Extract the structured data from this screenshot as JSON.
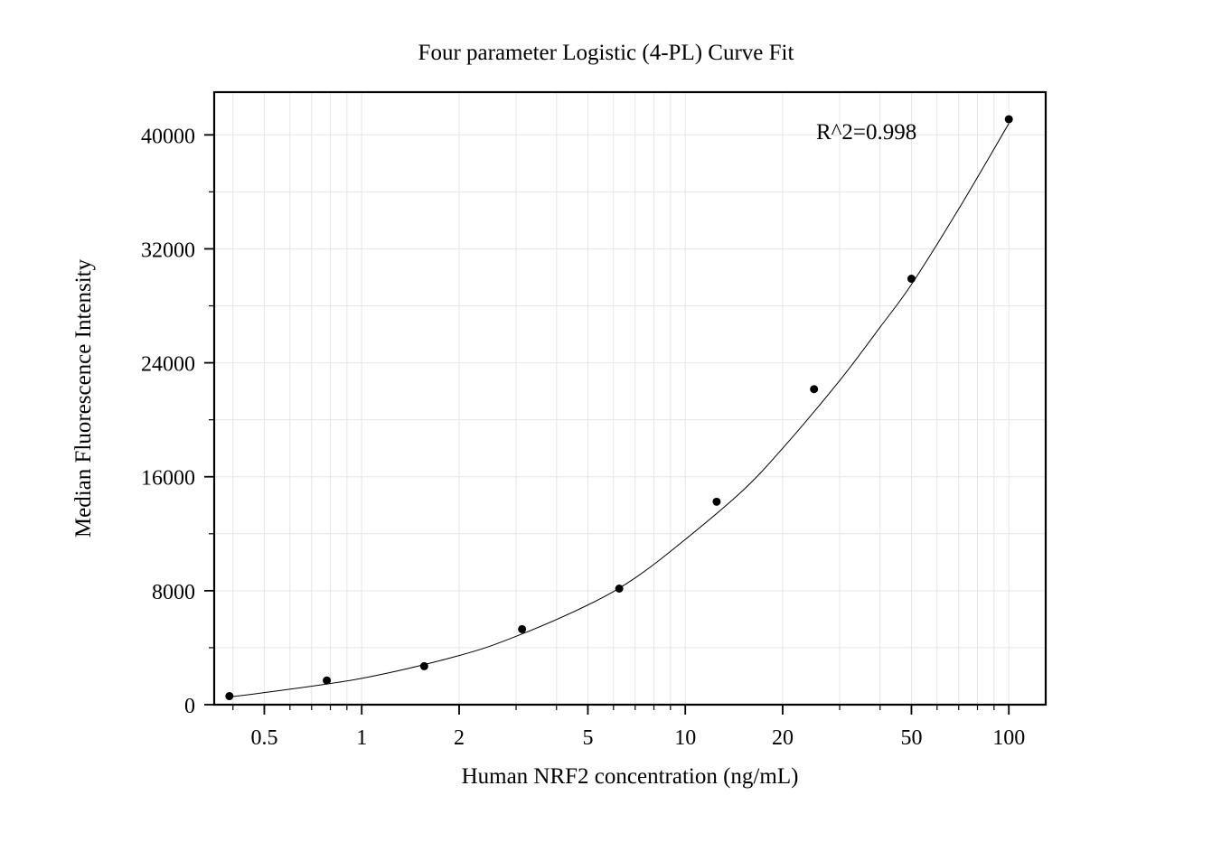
{
  "chart_data": {
    "type": "scatter",
    "title": "Four parameter Logistic (4-PL) Curve Fit",
    "xlabel": "Human NRF2 concentration (ng/mL)",
    "ylabel": "Median Fluorescence Intensity",
    "x_scale": "log",
    "xlim": [
      0.35,
      130
    ],
    "ylim": [
      0,
      43000
    ],
    "x_ticks": [
      {
        "value": 0.5,
        "label": "0.5"
      },
      {
        "value": 1,
        "label": "1"
      },
      {
        "value": 2,
        "label": "2"
      },
      {
        "value": 5,
        "label": "5"
      },
      {
        "value": 10,
        "label": "10"
      },
      {
        "value": 20,
        "label": "20"
      },
      {
        "value": 50,
        "label": "50"
      },
      {
        "value": 100,
        "label": "100"
      }
    ],
    "y_ticks": [
      {
        "value": 0,
        "label": "0"
      },
      {
        "value": 8000,
        "label": "8000"
      },
      {
        "value": 16000,
        "label": "16000"
      },
      {
        "value": 24000,
        "label": "24000"
      },
      {
        "value": 32000,
        "label": "32000"
      },
      {
        "value": 40000,
        "label": "40000"
      }
    ],
    "y_minor_ticks": [
      4000,
      12000,
      20000,
      28000,
      36000
    ],
    "grid": true,
    "annotation": "R^2=0.998",
    "series": [
      {
        "points": [
          {
            "x": 0.39,
            "y": 600
          },
          {
            "x": 0.78,
            "y": 1700
          },
          {
            "x": 1.56,
            "y": 2700
          },
          {
            "x": 3.13,
            "y": 5300
          },
          {
            "x": 6.25,
            "y": 8150
          },
          {
            "x": 12.5,
            "y": 14250
          },
          {
            "x": 25,
            "y": 22150
          },
          {
            "x": 50,
            "y": 29900
          },
          {
            "x": 100,
            "y": 41100
          }
        ]
      }
    ],
    "fit_curve": {
      "points": [
        {
          "x": 0.39,
          "y": 550
        },
        {
          "x": 0.5,
          "y": 850
        },
        {
          "x": 1,
          "y": 1850
        },
        {
          "x": 2,
          "y": 3450
        },
        {
          "x": 3,
          "y": 4800
        },
        {
          "x": 5,
          "y": 7000
        },
        {
          "x": 7,
          "y": 8900
        },
        {
          "x": 10,
          "y": 11600
        },
        {
          "x": 15,
          "y": 15000
        },
        {
          "x": 20,
          "y": 18000
        },
        {
          "x": 30,
          "y": 22750
        },
        {
          "x": 40,
          "y": 26500
        },
        {
          "x": 50,
          "y": 29500
        },
        {
          "x": 70,
          "y": 34800
        },
        {
          "x": 100,
          "y": 40800
        }
      ]
    }
  }
}
